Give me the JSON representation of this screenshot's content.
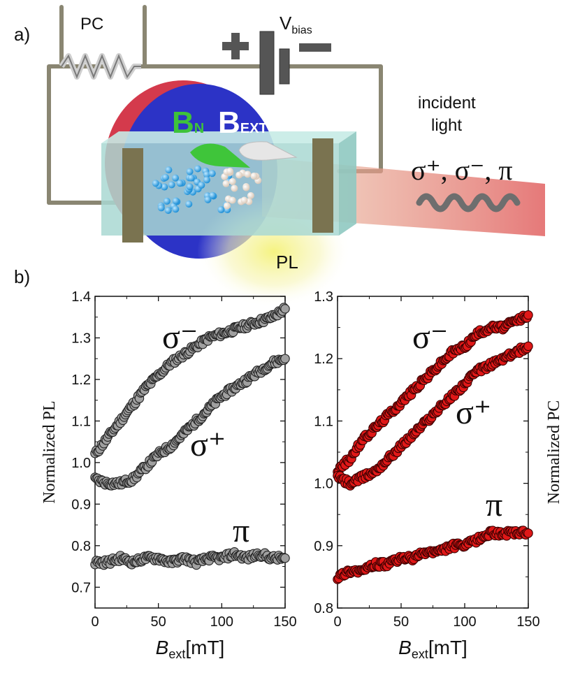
{
  "panel_a": {
    "label": "a)",
    "pc_label": "PC",
    "vbias_main": "V",
    "vbias_sub": "bias",
    "plus_sign": "+",
    "minus_sign": "−",
    "bn_main": "B",
    "bn_sub": "N",
    "bext_main": "B",
    "bext_sub": "EXT",
    "incident_line1": "incident",
    "incident_line2": "light",
    "polarizations": "σ⁺, σ⁻, π",
    "pl_label": "PL",
    "colors": {
      "bn": "#3ec23a",
      "bext": "#ffffff",
      "beam": "#e87070",
      "sample": "#a9d8d2",
      "disk_blue": "#2b34c4",
      "disk_red": "#d2354a",
      "pl_glow": "#f3f08a"
    }
  },
  "panel_b": {
    "label": "b)"
  },
  "chart_data": [
    {
      "type": "scatter",
      "xlabel_main": "B",
      "xlabel_sub": "ext",
      "xlabel_unit": "[mT]",
      "ylabel": "Normalized  PL",
      "xlim": [
        0,
        150
      ],
      "ylim": [
        0.65,
        1.4
      ],
      "xticks": [
        "0",
        "50",
        "100",
        "150"
      ],
      "yticks": [
        "0.7",
        "0.8",
        "0.9",
        "1.0",
        "1.1",
        "1.2",
        "1.3",
        "1.4"
      ],
      "marker_fill": "#a0a0a0",
      "marker_edge": "#222222",
      "series": [
        {
          "name": "σ⁻",
          "x": [
            0,
            10,
            20,
            30,
            40,
            50,
            60,
            70,
            80,
            90,
            100,
            110,
            120,
            130,
            140,
            150
          ],
          "y": [
            1.02,
            1.06,
            1.1,
            1.14,
            1.18,
            1.21,
            1.24,
            1.26,
            1.28,
            1.3,
            1.31,
            1.32,
            1.33,
            1.34,
            1.35,
            1.37
          ]
        },
        {
          "name": "σ⁺",
          "x": [
            0,
            10,
            20,
            30,
            40,
            50,
            60,
            70,
            80,
            90,
            100,
            110,
            120,
            130,
            140,
            150
          ],
          "y": [
            0.96,
            0.95,
            0.95,
            0.96,
            0.99,
            1.02,
            1.04,
            1.07,
            1.1,
            1.13,
            1.16,
            1.18,
            1.2,
            1.22,
            1.24,
            1.25
          ]
        },
        {
          "name": "π",
          "x": [
            0,
            10,
            20,
            30,
            40,
            50,
            60,
            70,
            80,
            90,
            100,
            110,
            120,
            130,
            140,
            150
          ],
          "y": [
            0.76,
            0.76,
            0.77,
            0.76,
            0.77,
            0.77,
            0.76,
            0.77,
            0.76,
            0.77,
            0.77,
            0.78,
            0.77,
            0.78,
            0.77,
            0.77
          ]
        }
      ]
    },
    {
      "type": "scatter",
      "xlabel_main": "B",
      "xlabel_sub": "ext",
      "xlabel_unit": "[mT]",
      "ylabel": "Normalized  PC",
      "xlim": [
        0,
        150
      ],
      "ylim": [
        0.8,
        1.3
      ],
      "xticks": [
        "0",
        "50",
        "100",
        "150"
      ],
      "yticks": [
        "0.8",
        "0.9",
        "1.0",
        "1.1",
        "1.2",
        "1.3"
      ],
      "marker_fill": "#e01818",
      "marker_edge": "#3a0000",
      "series": [
        {
          "name": "σ⁻",
          "x": [
            0,
            10,
            20,
            30,
            40,
            50,
            60,
            70,
            80,
            90,
            100,
            110,
            120,
            130,
            140,
            150
          ],
          "y": [
            1.02,
            1.04,
            1.07,
            1.09,
            1.11,
            1.13,
            1.15,
            1.17,
            1.19,
            1.21,
            1.22,
            1.24,
            1.25,
            1.25,
            1.26,
            1.27
          ]
        },
        {
          "name": "σ⁺",
          "x": [
            0,
            10,
            20,
            30,
            40,
            50,
            60,
            70,
            80,
            90,
            100,
            110,
            120,
            130,
            140,
            150
          ],
          "y": [
            1.01,
            1.0,
            1.01,
            1.02,
            1.04,
            1.06,
            1.08,
            1.1,
            1.12,
            1.14,
            1.16,
            1.18,
            1.19,
            1.2,
            1.21,
            1.22
          ]
        },
        {
          "name": "π",
          "x": [
            0,
            10,
            20,
            30,
            40,
            50,
            60,
            70,
            80,
            90,
            100,
            110,
            120,
            130,
            140,
            150
          ],
          "y": [
            0.85,
            0.86,
            0.86,
            0.87,
            0.87,
            0.88,
            0.88,
            0.89,
            0.89,
            0.9,
            0.9,
            0.91,
            0.92,
            0.92,
            0.92,
            0.92
          ]
        }
      ]
    }
  ]
}
